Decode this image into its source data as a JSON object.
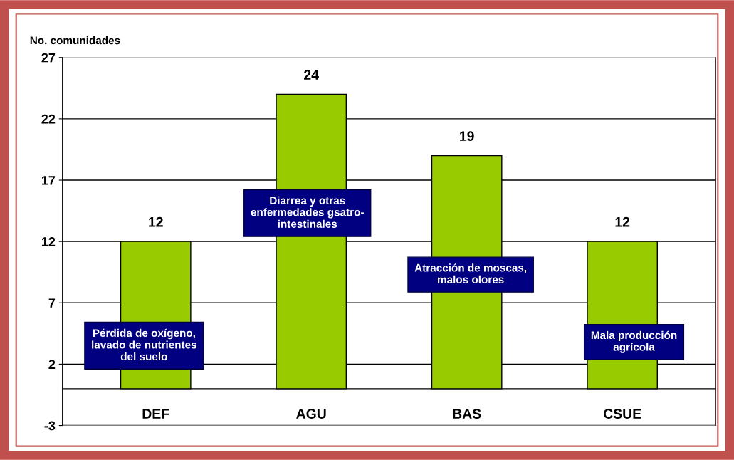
{
  "chart_data": {
    "type": "bar",
    "ylabel": "No. comunidades",
    "categories": [
      "DEF",
      "AGU",
      "BAS",
      "CSUE"
    ],
    "values": [
      12,
      24,
      19,
      12
    ],
    "color": "#99cc00",
    "ylim": [
      -3,
      27
    ],
    "yticks": [
      -3,
      2,
      7,
      12,
      17,
      22,
      27
    ],
    "grid": "y",
    "data_labels": true,
    "annotations": [
      "Pérdida de oxígeno,\nlavado de nutrientes\ndel suelo",
      "Diarrea y otras\nenfermedades gsatro-\nintestinales",
      "Atracción de moscas,\nmalos olores",
      "Mala producción\nagrícola"
    ]
  }
}
